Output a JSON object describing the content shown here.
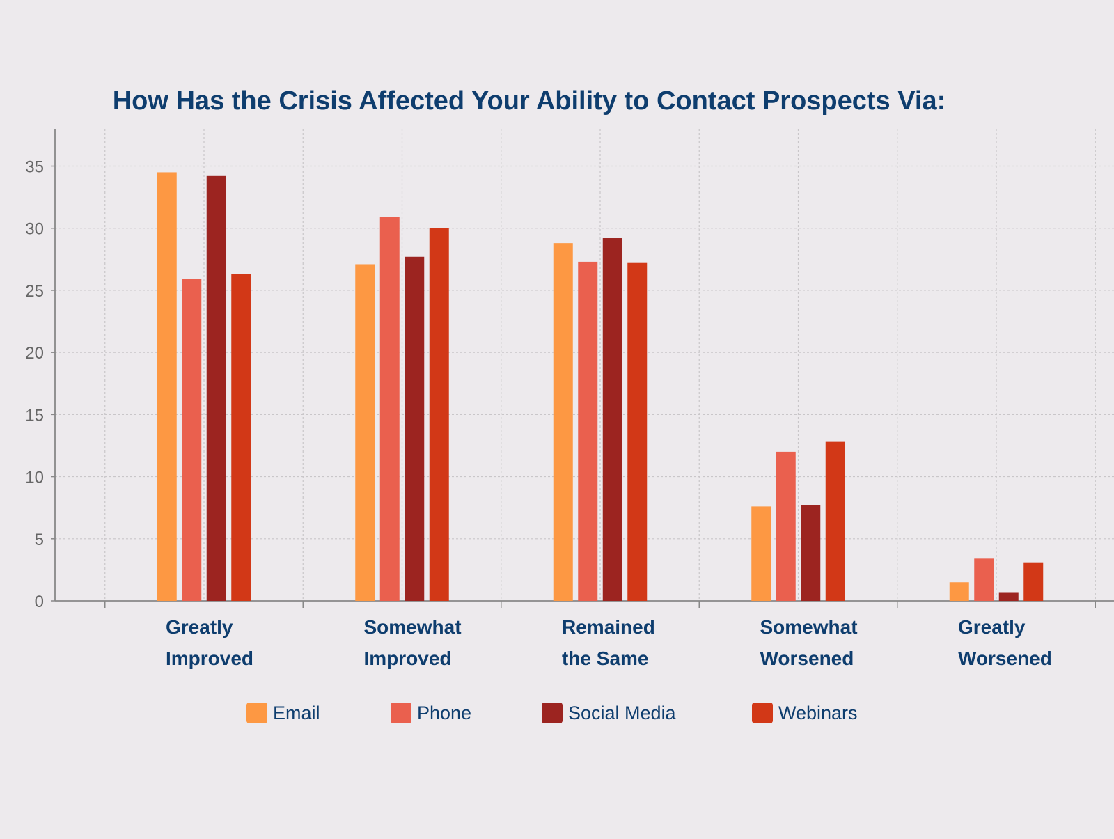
{
  "chart_data": {
    "type": "bar",
    "title": "How Has the Crisis Affected Your Ability to Contact Prospects Via:",
    "xlabel": "",
    "ylabel": "",
    "ylim": [
      0,
      38
    ],
    "yticks": [
      0,
      5,
      10,
      15,
      20,
      25,
      30,
      35
    ],
    "grid": true,
    "legend_position": "bottom",
    "categories": [
      [
        "Greatly",
        "Improved"
      ],
      [
        "Somewhat",
        "Improved"
      ],
      [
        "Remained",
        "the Same"
      ],
      [
        "Somewhat",
        "Worsened"
      ],
      [
        "Greatly",
        "Worsened"
      ]
    ],
    "series": [
      {
        "name": "Email",
        "color": "#fd9843",
        "values": [
          34.5,
          27.1,
          28.8,
          7.6,
          1.5
        ]
      },
      {
        "name": "Phone",
        "color": "#ea604e",
        "values": [
          25.9,
          30.9,
          27.3,
          12.0,
          3.4
        ]
      },
      {
        "name": "Social Media",
        "color": "#9c2420",
        "values": [
          34.2,
          27.7,
          29.2,
          7.7,
          0.7
        ]
      },
      {
        "name": "Webinars",
        "color": "#d23817",
        "values": [
          26.3,
          30.0,
          27.2,
          12.8,
          3.1
        ]
      }
    ]
  },
  "colors": {
    "background": "#edeaed",
    "title": "#0e3d6e",
    "category_label": "#0e3d6e",
    "legend_text": "#0e3d6e",
    "axis": "#888888",
    "tick_label": "#666666",
    "grid": "#c9c6c9"
  }
}
